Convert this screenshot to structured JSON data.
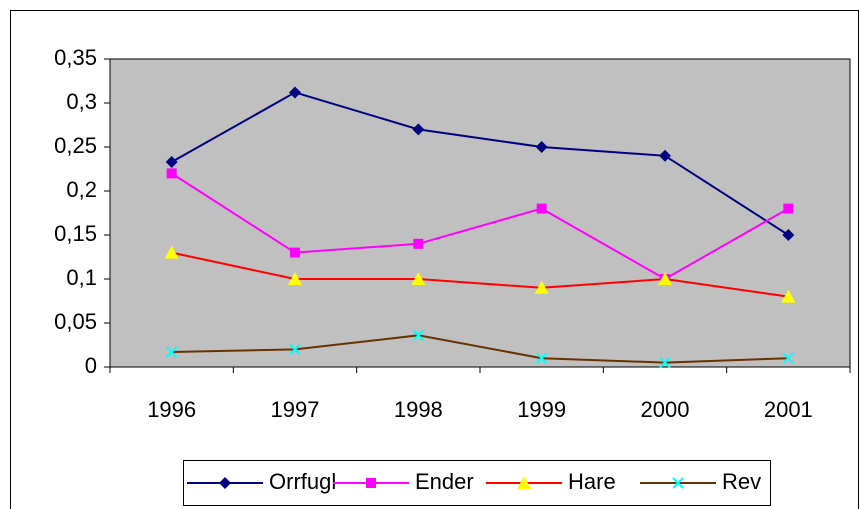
{
  "chart_data": {
    "type": "line",
    "categories": [
      "1996",
      "1997",
      "1998",
      "1999",
      "2000",
      "2001"
    ],
    "series": [
      {
        "name": "Orrfugl",
        "color": "#000080",
        "marker": "diamond",
        "marker_color": "#000080",
        "values": [
          0.233,
          0.312,
          0.27,
          0.25,
          0.24,
          0.15
        ]
      },
      {
        "name": "Ender",
        "color": "#FF00FF",
        "marker": "square",
        "marker_color": "#FF00FF",
        "values": [
          0.22,
          0.13,
          0.14,
          0.18,
          0.1,
          0.18
        ]
      },
      {
        "name": "Hare",
        "color": "#FF0000",
        "marker": "triangle",
        "marker_color": "#FFFF00",
        "values": [
          0.13,
          0.1,
          0.1,
          0.09,
          0.1,
          0.08
        ]
      },
      {
        "name": "Rev",
        "color": "#663300",
        "marker": "x",
        "marker_color": "#00FFFF",
        "values": [
          0.017,
          0.02,
          0.036,
          0.01,
          0.005,
          0.01
        ]
      }
    ],
    "ylim": [
      0,
      0.35
    ],
    "yticks": [
      0,
      {
        "value": 0.05,
        "label": "0,05"
      },
      {
        "value": 0.1,
        "label": "0,1"
      },
      {
        "value": 0.15,
        "label": "0,15"
      },
      {
        "value": 0.2,
        "label": "0,2"
      },
      {
        "value": 0.25,
        "label": "0,25"
      },
      {
        "value": 0.3,
        "label": "0,3"
      },
      {
        "value": 0.35,
        "label": "0,35"
      }
    ],
    "grid": false,
    "plot_background": "#C0C0C0",
    "legend": "bottom"
  }
}
